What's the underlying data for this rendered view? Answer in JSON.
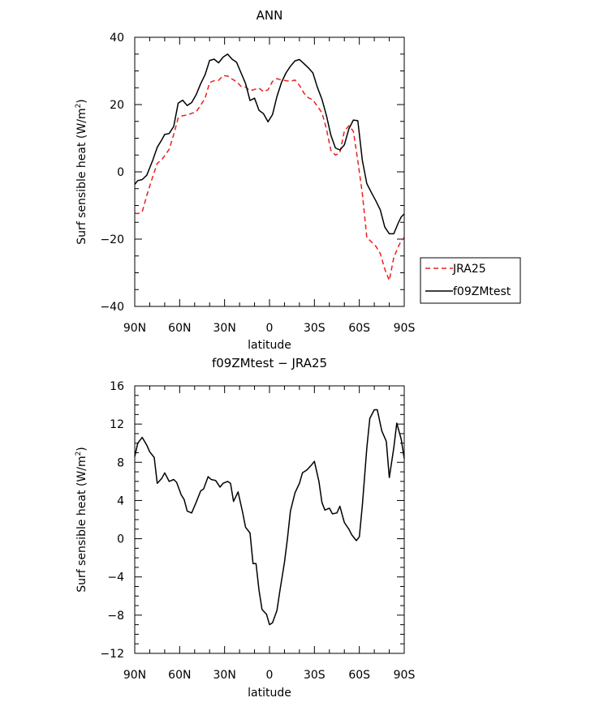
{
  "chart_data": [
    {
      "type": "line",
      "title": "ANN",
      "xlabel": "latitude",
      "ylabel": "Surf sensible heat (W/m²)",
      "ylabel_main": "Surf sensible heat (W/m",
      "ylabel_sup": "2",
      "ylabel_close": ")",
      "xlim": [
        90,
        -90
      ],
      "ylim": [
        -40,
        40
      ],
      "x_ticks": [
        90,
        60,
        30,
        0,
        -30,
        -60,
        -90
      ],
      "x_tick_labels": [
        "90N",
        "60N",
        "30N",
        "0",
        "30S",
        "60S",
        "90S"
      ],
      "y_ticks": [
        -40,
        -20,
        0,
        20,
        40
      ],
      "y_tick_labels": [
        "−40",
        "−20",
        "0",
        "20",
        "40"
      ],
      "legend_placement": "outside-right",
      "series": [
        {
          "name": "JRA25",
          "color": "#e8201f",
          "dash": "dashed",
          "x": [
            90,
            88,
            85,
            82,
            78,
            75,
            72,
            70,
            67,
            64,
            61,
            58,
            55,
            52,
            49,
            46,
            43,
            40,
            37,
            34,
            31,
            28,
            25,
            22,
            19,
            16,
            13,
            10,
            7,
            4,
            1,
            -2,
            -5,
            -8,
            -11,
            -14,
            -17,
            -20,
            -23,
            -26,
            -29,
            -32,
            -35,
            -38,
            -41,
            -44,
            -47,
            -50,
            -53,
            -56,
            -59,
            -62,
            -65,
            -68,
            -71,
            -74,
            -77,
            -80,
            -83,
            -86,
            -88,
            -90
          ],
          "y": [
            -12.3,
            -12.4,
            -11.9,
            -7,
            -1.5,
            2.5,
            3.6,
            4.8,
            6.7,
            11.1,
            16,
            16.7,
            16.9,
            17.4,
            17.8,
            19.8,
            21.9,
            26.5,
            27.1,
            27.2,
            28.6,
            28.5,
            27.6,
            26.8,
            25.4,
            25.2,
            24.1,
            24.5,
            24.9,
            23.8,
            24.4,
            26.9,
            27.7,
            27.3,
            27.1,
            26.9,
            27.3,
            25.7,
            23.4,
            22,
            21.4,
            19.5,
            17.6,
            12.8,
            6.4,
            5,
            5.6,
            12.1,
            13.7,
            12.1,
            3.3,
            -6.5,
            -19.5,
            -20.8,
            -22.1,
            -24.3,
            -28.9,
            -32.3,
            -25.5,
            -22.3,
            -20.5,
            -19.5
          ]
        },
        {
          "name": "f09ZMtest",
          "color": "#000000",
          "dash": "solid",
          "x": [
            90,
            88,
            85,
            82,
            78,
            75,
            72,
            70,
            67,
            64,
            61,
            58,
            55,
            52,
            49,
            46,
            43,
            40,
            37,
            34,
            31,
            28,
            25,
            22,
            19,
            16,
            13,
            10,
            7,
            4,
            1,
            -2,
            -5,
            -8,
            -11,
            -14,
            -17,
            -20,
            -23,
            -26,
            -29,
            -32,
            -35,
            -38,
            -41,
            -44,
            -47,
            -50,
            -53,
            -56,
            -59,
            -62,
            -65,
            -68,
            -71,
            -74,
            -77,
            -80,
            -83,
            -86,
            -88,
            -90
          ],
          "y": [
            -3.7,
            -2.6,
            -2.3,
            -1,
            3.4,
            7.3,
            9.5,
            11.1,
            11.4,
            13.5,
            20.4,
            21.3,
            19.7,
            20.6,
            22.9,
            26.2,
            28.9,
            33.1,
            33.5,
            32.4,
            34.1,
            35,
            33.5,
            32.6,
            29.4,
            26.3,
            21.2,
            21.9,
            18.3,
            17.3,
            14.9,
            17,
            22.4,
            26.6,
            29.4,
            31.4,
            33,
            33.4,
            32.2,
            30.9,
            29.4,
            25.1,
            21.6,
            16.8,
            10.9,
            7.1,
            6.5,
            8,
            12.8,
            15.4,
            15.2,
            3.4,
            -3.5,
            -6.1,
            -8.6,
            -11.3,
            -16.4,
            -18.4,
            -18.4,
            -15.2,
            -13.4,
            -12.5
          ]
        }
      ]
    },
    {
      "type": "line",
      "title": "f09ZMtest − JRA25",
      "xlabel": "latitude",
      "ylabel": "Surf sensible heat (W/m²)",
      "ylabel_main": "Surf sensible heat (W/m",
      "ylabel_sup": "2",
      "ylabel_close": ")",
      "xlim": [
        90,
        -90
      ],
      "ylim": [
        -12,
        16
      ],
      "x_ticks": [
        90,
        60,
        30,
        0,
        -30,
        -60,
        -90
      ],
      "x_tick_labels": [
        "90N",
        "60N",
        "30N",
        "0",
        "30S",
        "60S",
        "90S"
      ],
      "y_ticks": [
        -12,
        -8,
        -4,
        0,
        4,
        8,
        12,
        16
      ],
      "y_tick_labels": [
        "−12",
        "−8",
        "−4",
        "0",
        "4",
        "8",
        "12",
        "16"
      ],
      "series": [
        {
          "color": "#000000",
          "dash": "solid",
          "x": [
            90,
            88,
            85,
            82,
            80,
            77,
            75,
            72,
            70,
            67,
            64,
            62,
            59,
            57,
            55,
            52,
            49,
            46,
            44,
            41,
            39,
            36,
            33,
            31,
            28,
            26,
            24,
            21,
            18,
            16,
            13,
            11,
            9,
            7,
            5,
            2,
            0,
            -2,
            -5,
            -7,
            -10,
            -12,
            -14,
            -17,
            -20,
            -22,
            -25,
            -28,
            -30,
            -33,
            -35,
            -37,
            -40,
            -42,
            -45,
            -47,
            -50,
            -53,
            -55,
            -58,
            -60,
            -62,
            -65,
            -67,
            -70,
            -72,
            -75,
            -78,
            -80,
            -83,
            -85,
            -88,
            -90
          ],
          "y": [
            8.6,
            10,
            10.6,
            9.8,
            9.1,
            8.5,
            5.8,
            6.3,
            6.9,
            6,
            6.2,
            5.9,
            4.6,
            4.1,
            2.9,
            2.7,
            3.8,
            5,
            5.2,
            6.5,
            6.2,
            6.1,
            5.4,
            5.8,
            6,
            5.8,
            3.9,
            4.9,
            2.8,
            1.2,
            0.6,
            -2.6,
            -2.6,
            -5.4,
            -7.4,
            -7.9,
            -9,
            -8.8,
            -7.5,
            -5.4,
            -2.5,
            0,
            2.9,
            4.8,
            5.8,
            6.9,
            7.2,
            7.7,
            8.1,
            6,
            3.8,
            3,
            3.2,
            2.6,
            2.7,
            3.4,
            1.7,
            1,
            0.4,
            -0.2,
            0.2,
            3.5,
            9.5,
            12.6,
            13.5,
            13.5,
            11.3,
            10.2,
            6.4,
            9.5,
            12.1,
            10.4,
            8.4
          ]
        }
      ]
    }
  ]
}
